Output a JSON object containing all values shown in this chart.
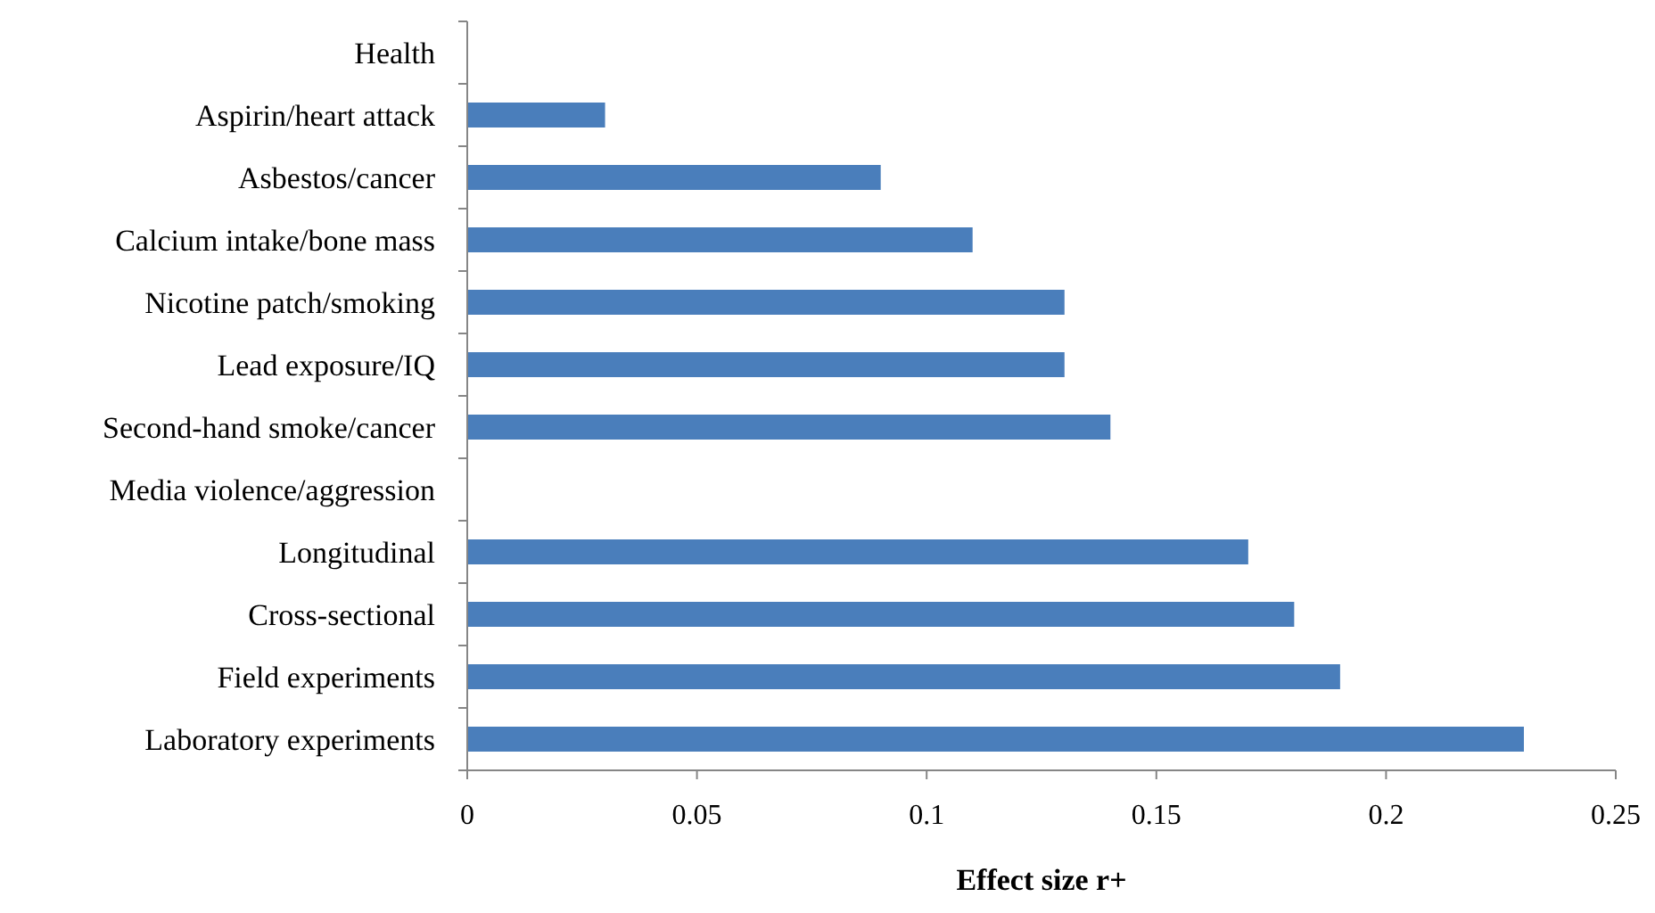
{
  "chart_data": {
    "type": "bar",
    "orientation": "horizontal",
    "xlabel": "Effect size r+",
    "categories": [
      "Health",
      "Aspirin/heart attack",
      "Asbestos/cancer",
      "Calcium intake/bone mass",
      "Nicotine patch/smoking",
      "Lead exposure/IQ",
      "Second-hand smoke/cancer",
      "Media violence/aggression",
      "Longitudinal",
      "Cross-sectional",
      "Field experiments",
      "Laboratory experiments"
    ],
    "values": [
      null,
      0.03,
      0.09,
      0.11,
      0.13,
      0.13,
      0.14,
      null,
      0.17,
      0.18,
      0.19,
      0.23
    ],
    "color": "#4a7ebb",
    "xlim": [
      0,
      0.25
    ],
    "xticks": [
      0,
      0.05,
      0.1,
      0.15,
      0.2,
      0.25
    ],
    "grid": false
  }
}
